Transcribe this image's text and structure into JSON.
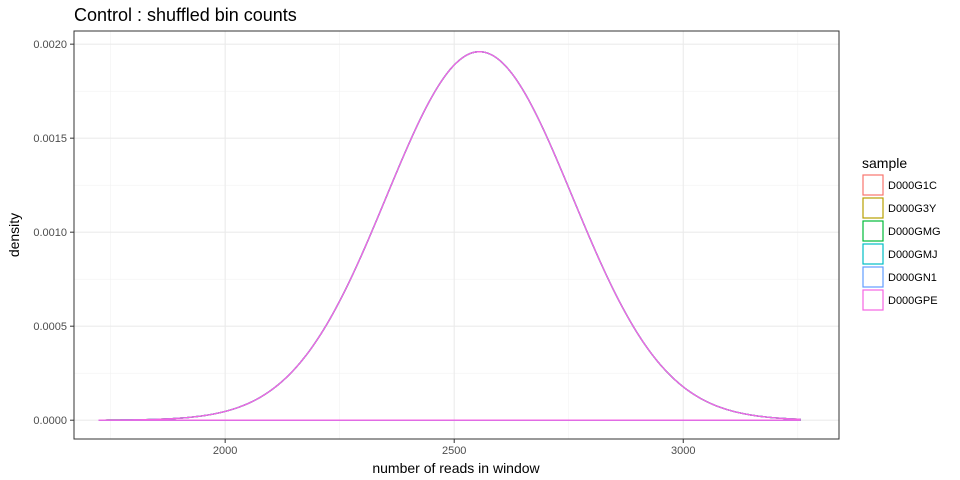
{
  "chart_data": {
    "type": "area",
    "title": "Control : shuffled bin counts",
    "xlabel": "number of reads in window",
    "ylabel": "density",
    "xlim": [
      1670,
      3340
    ],
    "ylim": [
      -0.0001,
      0.00207
    ],
    "x_ticks": [
      2000,
      2500,
      3000
    ],
    "x_tick_labels": [
      "2000",
      "2500",
      "3000"
    ],
    "y_ticks": [
      0,
      0.0005,
      0.001,
      0.0015,
      0.002
    ],
    "y_tick_labels": [
      "0.0000",
      "0.0005",
      "0.0010",
      "0.0015",
      "0.0020"
    ],
    "grid": true,
    "legend": {
      "title": "sample",
      "position": "right"
    },
    "series": [
      {
        "name": "D000G1C",
        "color": "#F8766D",
        "mean": 2555,
        "sd": 203,
        "x_range": [
          1725,
          3255
        ]
      },
      {
        "name": "D000G3Y",
        "color": "#B79F00",
        "mean": 2555,
        "sd": 203,
        "x_range": [
          1725,
          3255
        ]
      },
      {
        "name": "D000GMG",
        "color": "#00BA38",
        "mean": 2555,
        "sd": 203,
        "x_range": [
          1725,
          3255
        ]
      },
      {
        "name": "D000GMJ",
        "color": "#00BFC4",
        "mean": 2555,
        "sd": 203,
        "x_range": [
          1725,
          3255
        ]
      },
      {
        "name": "D000GN1",
        "color": "#619CFF",
        "mean": 2555,
        "sd": 203,
        "x_range": [
          1725,
          3255
        ]
      },
      {
        "name": "D000GPE",
        "color": "#F564E3",
        "mean": 2555,
        "sd": 203,
        "x_range": [
          1725,
          3255
        ]
      }
    ],
    "curve_peak": {
      "x": 2555,
      "y": 0.00196
    }
  }
}
